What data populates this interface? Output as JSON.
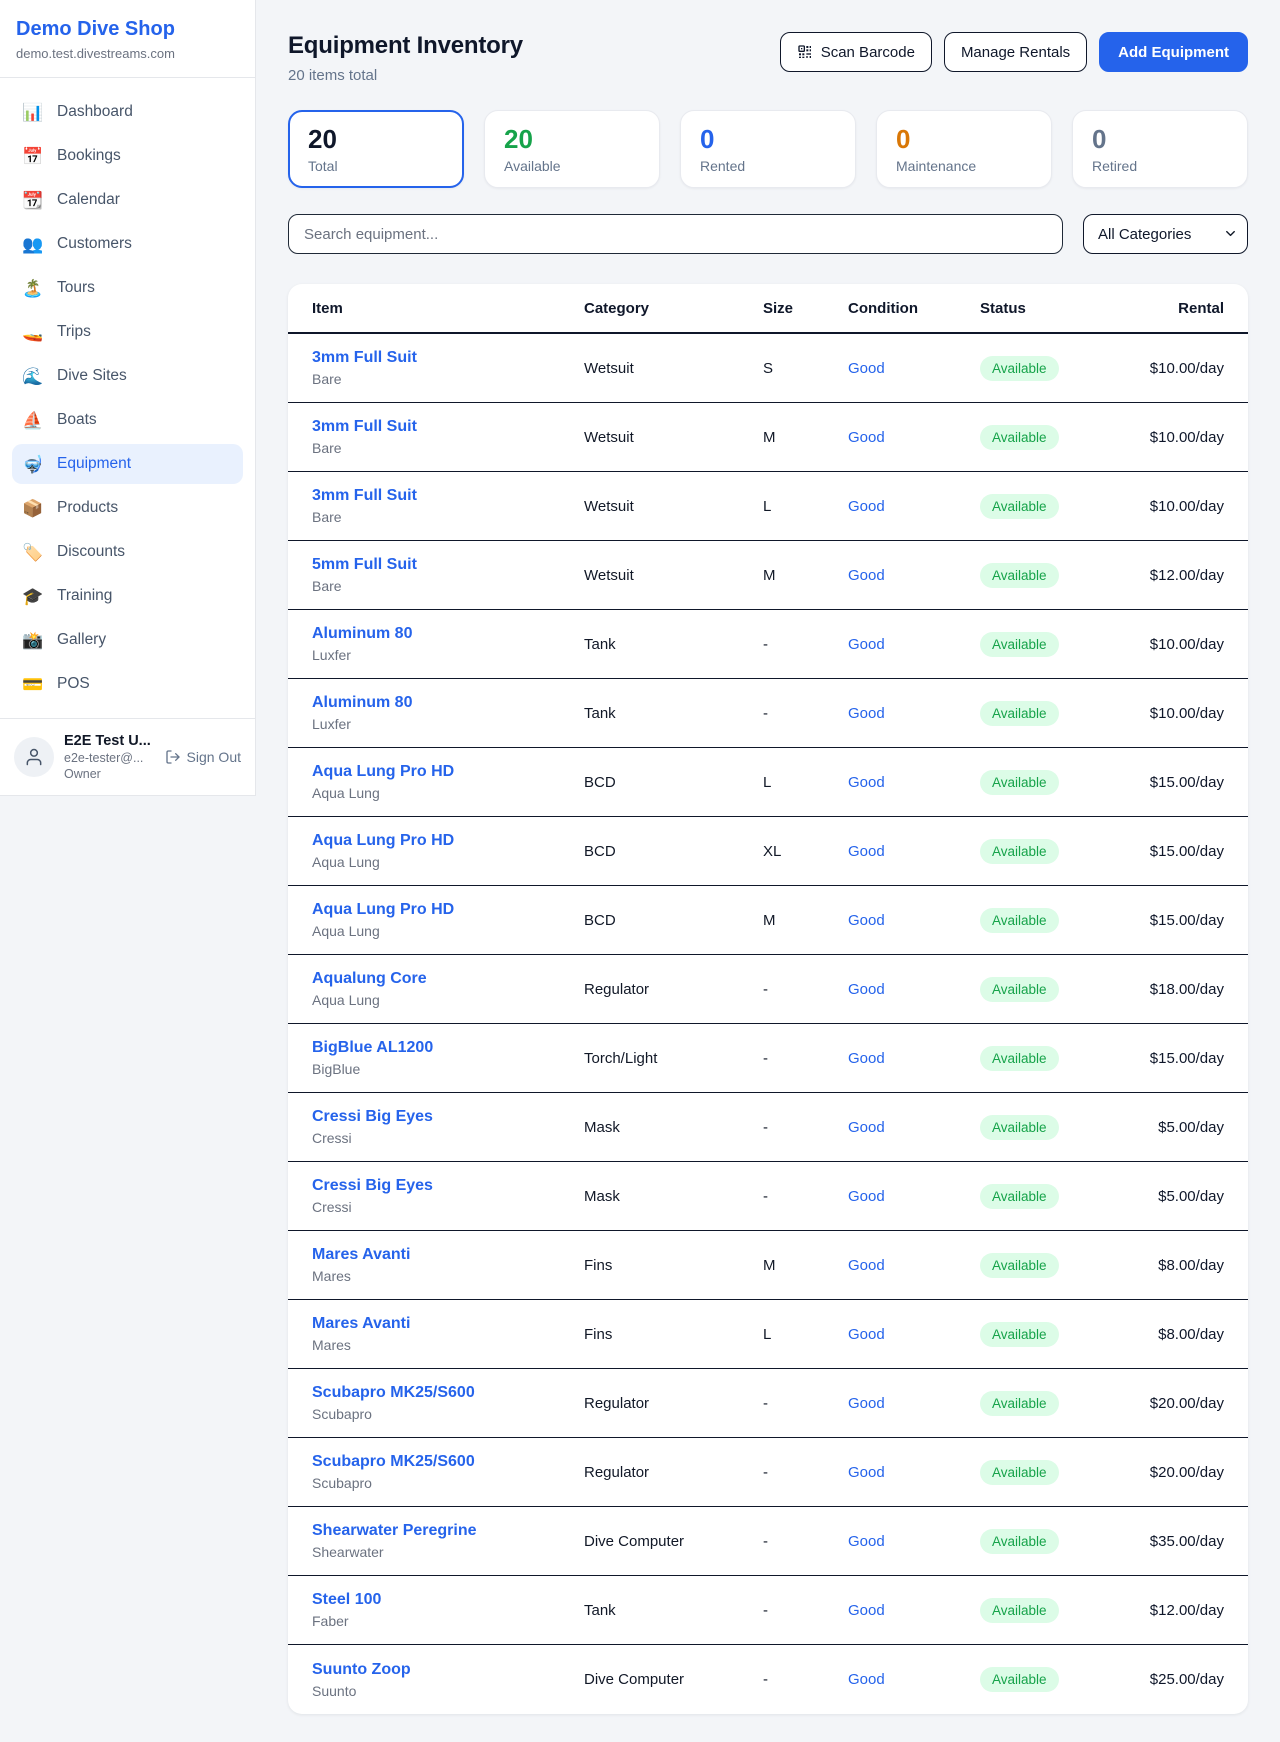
{
  "brand": {
    "name": "Demo Dive Shop",
    "domain": "demo.test.divestreams.com"
  },
  "sidebar": {
    "items": [
      {
        "name": "sidebar-item-dashboard",
        "icon": "📊",
        "icon_name": "bar-chart-icon",
        "label": "Dashboard"
      },
      {
        "name": "sidebar-item-bookings",
        "icon": "📅",
        "icon_name": "calendar-date-icon",
        "label": "Bookings"
      },
      {
        "name": "sidebar-item-calendar",
        "icon": "📆",
        "icon_name": "calendar-icon",
        "label": "Calendar"
      },
      {
        "name": "sidebar-item-customers",
        "icon": "👥",
        "icon_name": "people-icon",
        "label": "Customers"
      },
      {
        "name": "sidebar-item-tours",
        "icon": "🏝️",
        "icon_name": "island-icon",
        "label": "Tours"
      },
      {
        "name": "sidebar-item-trips",
        "icon": "🚤",
        "icon_name": "speedboat-icon",
        "label": "Trips"
      },
      {
        "name": "sidebar-item-dive-sites",
        "icon": "🌊",
        "icon_name": "wave-icon",
        "label": "Dive Sites"
      },
      {
        "name": "sidebar-item-boats",
        "icon": "⛵",
        "icon_name": "sailboat-icon",
        "label": "Boats"
      },
      {
        "name": "sidebar-item-equipment",
        "icon": "🤿",
        "icon_name": "diving-mask-icon",
        "label": "Equipment",
        "active": true
      },
      {
        "name": "sidebar-item-products",
        "icon": "📦",
        "icon_name": "package-icon",
        "label": "Products"
      },
      {
        "name": "sidebar-item-discounts",
        "icon": "🏷️",
        "icon_name": "tag-icon",
        "label": "Discounts"
      },
      {
        "name": "sidebar-item-training",
        "icon": "🎓",
        "icon_name": "graduation-cap-icon",
        "label": "Training"
      },
      {
        "name": "sidebar-item-gallery",
        "icon": "📸",
        "icon_name": "camera-icon",
        "label": "Gallery"
      },
      {
        "name": "sidebar-item-pos",
        "icon": "💳",
        "icon_name": "credit-card-icon",
        "label": "POS"
      }
    ]
  },
  "user": {
    "name": "E2E Test U...",
    "email": "e2e-tester@...",
    "role": "Owner",
    "sign_out_label": "Sign Out"
  },
  "header": {
    "title": "Equipment Inventory",
    "subtitle": "20 items total",
    "scan_barcode_label": "Scan Barcode",
    "manage_rentals_label": "Manage Rentals",
    "add_equipment_label": "Add Equipment",
    "primary_color": "#2563eb"
  },
  "stats": [
    {
      "value": "20",
      "label": "Total",
      "color": "#0f172a",
      "selected": true
    },
    {
      "value": "20",
      "label": "Available",
      "color": "#16a34a"
    },
    {
      "value": "0",
      "label": "Rented",
      "color": "#2563eb"
    },
    {
      "value": "0",
      "label": "Maintenance",
      "color": "#d97706"
    },
    {
      "value": "0",
      "label": "Retired",
      "color": "#64748b"
    }
  ],
  "filters": {
    "search_placeholder": "Search equipment...",
    "category_selected": "All Categories"
  },
  "table": {
    "columns": [
      "Item",
      "Category",
      "Size",
      "Condition",
      "Status",
      "Rental"
    ],
    "status_colors": {
      "available_bg": "#dcfce7",
      "available_text": "#16a34a"
    },
    "rows": [
      {
        "item": "3mm Full Suit",
        "brand": "Bare",
        "category": "Wetsuit",
        "size": "S",
        "condition": "Good",
        "status": "Available",
        "rental": "$10.00/day"
      },
      {
        "item": "3mm Full Suit",
        "brand": "Bare",
        "category": "Wetsuit",
        "size": "M",
        "condition": "Good",
        "status": "Available",
        "rental": "$10.00/day"
      },
      {
        "item": "3mm Full Suit",
        "brand": "Bare",
        "category": "Wetsuit",
        "size": "L",
        "condition": "Good",
        "status": "Available",
        "rental": "$10.00/day"
      },
      {
        "item": "5mm Full Suit",
        "brand": "Bare",
        "category": "Wetsuit",
        "size": "M",
        "condition": "Good",
        "status": "Available",
        "rental": "$12.00/day"
      },
      {
        "item": "Aluminum 80",
        "brand": "Luxfer",
        "category": "Tank",
        "size": "-",
        "condition": "Good",
        "status": "Available",
        "rental": "$10.00/day"
      },
      {
        "item": "Aluminum 80",
        "brand": "Luxfer",
        "category": "Tank",
        "size": "-",
        "condition": "Good",
        "status": "Available",
        "rental": "$10.00/day"
      },
      {
        "item": "Aqua Lung Pro HD",
        "brand": "Aqua Lung",
        "category": "BCD",
        "size": "L",
        "condition": "Good",
        "status": "Available",
        "rental": "$15.00/day"
      },
      {
        "item": "Aqua Lung Pro HD",
        "brand": "Aqua Lung",
        "category": "BCD",
        "size": "XL",
        "condition": "Good",
        "status": "Available",
        "rental": "$15.00/day"
      },
      {
        "item": "Aqua Lung Pro HD",
        "brand": "Aqua Lung",
        "category": "BCD",
        "size": "M",
        "condition": "Good",
        "status": "Available",
        "rental": "$15.00/day"
      },
      {
        "item": "Aqualung Core",
        "brand": "Aqua Lung",
        "category": "Regulator",
        "size": "-",
        "condition": "Good",
        "status": "Available",
        "rental": "$18.00/day"
      },
      {
        "item": "BigBlue AL1200",
        "brand": "BigBlue",
        "category": "Torch/Light",
        "size": "-",
        "condition": "Good",
        "status": "Available",
        "rental": "$15.00/day"
      },
      {
        "item": "Cressi Big Eyes",
        "brand": "Cressi",
        "category": "Mask",
        "size": "-",
        "condition": "Good",
        "status": "Available",
        "rental": "$5.00/day"
      },
      {
        "item": "Cressi Big Eyes",
        "brand": "Cressi",
        "category": "Mask",
        "size": "-",
        "condition": "Good",
        "status": "Available",
        "rental": "$5.00/day"
      },
      {
        "item": "Mares Avanti",
        "brand": "Mares",
        "category": "Fins",
        "size": "M",
        "condition": "Good",
        "status": "Available",
        "rental": "$8.00/day"
      },
      {
        "item": "Mares Avanti",
        "brand": "Mares",
        "category": "Fins",
        "size": "L",
        "condition": "Good",
        "status": "Available",
        "rental": "$8.00/day"
      },
      {
        "item": "Scubapro MK25/S600",
        "brand": "Scubapro",
        "category": "Regulator",
        "size": "-",
        "condition": "Good",
        "status": "Available",
        "rental": "$20.00/day"
      },
      {
        "item": "Scubapro MK25/S600",
        "brand": "Scubapro",
        "category": "Regulator",
        "size": "-",
        "condition": "Good",
        "status": "Available",
        "rental": "$20.00/day"
      },
      {
        "item": "Shearwater Peregrine",
        "brand": "Shearwater",
        "category": "Dive Computer",
        "size": "-",
        "condition": "Good",
        "status": "Available",
        "rental": "$35.00/day"
      },
      {
        "item": "Steel 100",
        "brand": "Faber",
        "category": "Tank",
        "size": "-",
        "condition": "Good",
        "status": "Available",
        "rental": "$12.00/day"
      },
      {
        "item": "Suunto Zoop",
        "brand": "Suunto",
        "category": "Dive Computer",
        "size": "-",
        "condition": "Good",
        "status": "Available",
        "rental": "$25.00/day"
      }
    ]
  }
}
